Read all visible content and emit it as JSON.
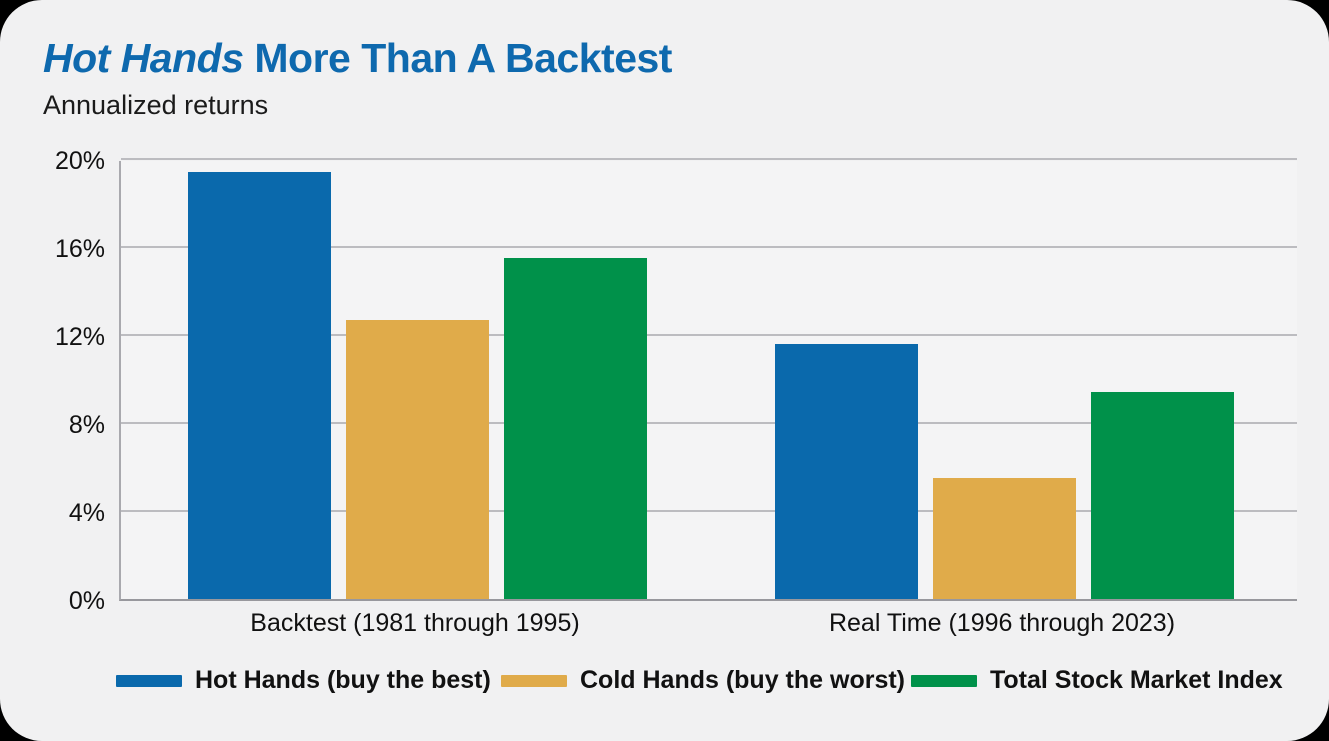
{
  "page": {
    "background": "#000000",
    "card_background": "#f1f1f2"
  },
  "header": {
    "title_italic": "Hot Hands",
    "title_rest": " More Than A Backtest",
    "title_color": "#0e69ae",
    "subtitle": "Annualized returns"
  },
  "chart_data": {
    "type": "bar",
    "title": "Hot Hands More Than A Backtest",
    "subtitle": "Annualized returns",
    "categories": [
      "Backtest (1981 through 1995)",
      "Real Time (1996 through 2023)"
    ],
    "series": [
      {
        "name": "Hot Hands (buy the best)",
        "color": "#0a69ac",
        "values": [
          19.4,
          11.6
        ]
      },
      {
        "name": "Cold Hands (buy the worst)",
        "color": "#e0ab4a",
        "values": [
          12.7,
          5.5
        ]
      },
      {
        "name": "Total Stock Market Index",
        "color": "#00914a",
        "values": [
          15.5,
          9.4
        ]
      }
    ],
    "value_unit": "%",
    "ylim": [
      0,
      20
    ],
    "yticks": [
      0,
      4,
      8,
      12,
      16,
      20
    ],
    "ytick_labels": [
      "0%",
      "4%",
      "8%",
      "12%",
      "16%",
      "20%"
    ],
    "grid": true,
    "legend_position": "bottom"
  }
}
